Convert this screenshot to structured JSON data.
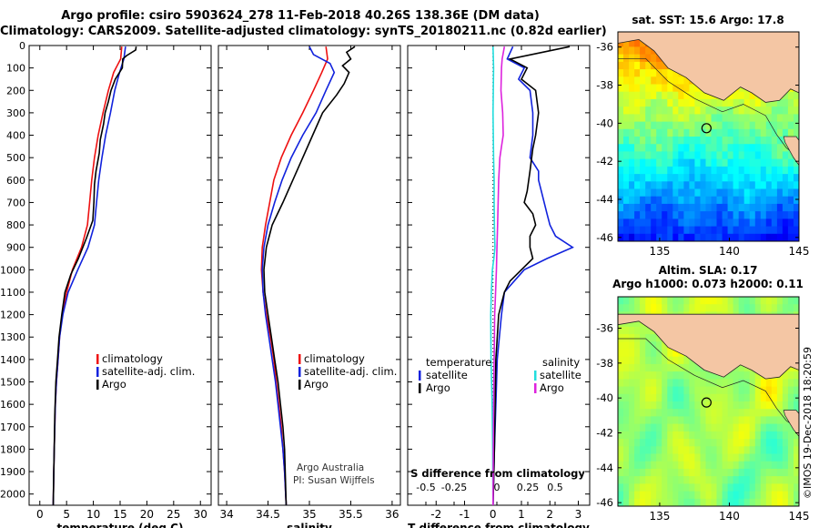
{
  "titles": {
    "line1": "Argo profile: csiro 5903624_278 11-Feb-2018 40.26S 138.36E (DM data)",
    "line2": "Climatology: CARS2009. Satellite-adjusted climatology: synTS_20180211.nc (0.82d earlier)"
  },
  "credit": "©IMOS 19-Dec-2018 18:20:59",
  "colors": {
    "climatology": "#ee1111",
    "satellite": "#1122dd",
    "argo": "#000000",
    "salinity_sat": "#22dddd",
    "salinity_argo": "#dd22dd"
  },
  "chart_data": [
    {
      "type": "line",
      "xlabel": "temperature (deg C)",
      "ylabel": "",
      "xlim": [
        -2,
        32
      ],
      "ylim": [
        2050,
        0
      ],
      "xticks": [
        "0",
        "5",
        "10",
        "15",
        "20",
        "25",
        "30"
      ],
      "yticks": [
        "0",
        "100",
        "200",
        "300",
        "400",
        "500",
        "600",
        "700",
        "800",
        "900",
        "1000",
        "1100",
        "1200",
        "1300",
        "1400",
        "1500",
        "1600",
        "1700",
        "1800",
        "1900",
        "2000"
      ],
      "legend": [
        "climatology",
        "satellite-adj. clim.",
        "Argo"
      ],
      "series": [
        {
          "name": "climatology",
          "color": "#ee1111",
          "x": [
            15.3,
            15.1,
            13.8,
            12.8,
            11.8,
            10.9,
            10.2,
            9.7,
            9.3,
            8.9,
            7.8,
            6.1,
            5.0,
            4.2,
            3.7,
            3.4,
            3.1,
            2.9,
            2.8,
            2.7,
            2.6,
            2.5
          ],
          "y": [
            5,
            60,
            120,
            200,
            300,
            400,
            500,
            600,
            700,
            800,
            900,
            1000,
            1100,
            1200,
            1300,
            1400,
            1500,
            1600,
            1700,
            1800,
            1900,
            2050
          ]
        },
        {
          "name": "satellite-adj. clim.",
          "color": "#1122dd",
          "x": [
            16.0,
            15.7,
            14.9,
            14.0,
            13.2,
            12.3,
            11.6,
            11.0,
            10.6,
            10.2,
            9.0,
            7.1,
            5.3,
            4.3,
            3.7,
            3.4,
            3.1,
            2.9,
            2.8,
            2.7,
            2.6,
            2.5
          ],
          "y": [
            5,
            60,
            120,
            200,
            300,
            400,
            500,
            600,
            700,
            800,
            900,
            1000,
            1100,
            1200,
            1300,
            1400,
            1500,
            1600,
            1700,
            1800,
            1900,
            2050
          ]
        },
        {
          "name": "Argo",
          "color": "#000000",
          "x": [
            18.0,
            17.9,
            16.2,
            15.5,
            15.4,
            14.1,
            13.3,
            12.8,
            12.2,
            11.9,
            11.3,
            11.1,
            10.5,
            10.2,
            10.1,
            9.9,
            8.7,
            7.2,
            5.8,
            4.7,
            4.1,
            3.6,
            3.3,
            3.0,
            2.8,
            2.7,
            2.6,
            2.5
          ],
          "y": [
            5,
            20,
            45,
            60,
            100,
            150,
            200,
            250,
            300,
            350,
            420,
            480,
            560,
            620,
            700,
            780,
            860,
            950,
            1020,
            1100,
            1200,
            1300,
            1400,
            1500,
            1650,
            1800,
            1900,
            2050
          ]
        }
      ]
    },
    {
      "type": "line",
      "xlabel": "salinity",
      "ylabel": "",
      "xlim": [
        33.9,
        36.1
      ],
      "ylim": [
        2050,
        0
      ],
      "xticks": [
        "34",
        "34.5",
        "35",
        "35.5",
        "36"
      ],
      "legend": [
        "climatology",
        "satellite-adj. clim.",
        "Argo"
      ],
      "annotations": [
        "Argo Australia",
        "PI: Susan Wijffels"
      ],
      "series": [
        {
          "name": "climatology",
          "color": "#ee1111",
          "x": [
            35.2,
            35.22,
            35.15,
            35.05,
            34.92,
            34.78,
            34.66,
            34.57,
            34.52,
            34.47,
            34.43,
            34.42,
            34.44,
            34.48,
            34.53,
            34.57,
            34.6,
            34.63,
            34.66,
            34.68,
            34.7,
            34.72
          ],
          "y": [
            5,
            60,
            120,
            200,
            300,
            400,
            500,
            600,
            700,
            800,
            900,
            1000,
            1100,
            1200,
            1300,
            1400,
            1500,
            1600,
            1700,
            1800,
            1900,
            2050
          ]
        },
        {
          "name": "satellite-adj. clim.",
          "color": "#1122dd",
          "x": [
            35.0,
            35.05,
            35.25,
            35.3,
            35.2,
            35.08,
            34.92,
            34.78,
            34.67,
            34.58,
            34.5,
            34.45,
            34.43,
            34.44,
            34.47,
            34.51,
            34.55,
            34.59,
            34.62,
            34.65,
            34.68,
            34.7,
            34.72
          ],
          "y": [
            5,
            40,
            80,
            120,
            200,
            300,
            400,
            500,
            600,
            700,
            800,
            900,
            1000,
            1100,
            1200,
            1300,
            1400,
            1500,
            1600,
            1700,
            1800,
            1900,
            2050
          ]
        },
        {
          "name": "Argo",
          "color": "#000000",
          "x": [
            35.55,
            35.45,
            35.5,
            35.4,
            35.48,
            35.42,
            35.33,
            35.16,
            35.04,
            34.92,
            34.8,
            34.68,
            34.55,
            34.48,
            34.45,
            34.46,
            34.5,
            34.54,
            34.58,
            34.62,
            34.65,
            34.68,
            34.7,
            34.72
          ],
          "y": [
            5,
            30,
            60,
            90,
            120,
            170,
            220,
            300,
            400,
            500,
            600,
            700,
            800,
            900,
            1000,
            1100,
            1200,
            1300,
            1400,
            1500,
            1600,
            1700,
            1800,
            2050
          ]
        }
      ]
    },
    {
      "type": "line",
      "xlabel": "T difference from climatology",
      "ylabel": "",
      "xlim": [
        -3,
        3.4
      ],
      "ylim": [
        2050,
        0
      ],
      "xticks": [
        "-2",
        "-1",
        "0",
        "1",
        "2",
        "3"
      ],
      "top_axis_label": "S difference from climatology",
      "top_xticks": [
        "-0.5",
        "-0.25",
        "0",
        "0.25",
        "0.5"
      ],
      "legend_left_title": "temperature",
      "legend_right_title": "salinity",
      "legend_left": [
        "satellite",
        "Argo"
      ],
      "legend_right": [
        "satellite",
        "Argo"
      ],
      "series": [
        {
          "name": "temperature satellite",
          "color": "#1122dd",
          "x": [
            0.7,
            0.5,
            1.1,
            0.9,
            1.3,
            1.4,
            1.4,
            1.3,
            1.6,
            1.6,
            1.7,
            1.8,
            1.9,
            2.0,
            2.2,
            2.8,
            1.9,
            1.1,
            0.4,
            0.3,
            0.15,
            0.1,
            0.05,
            0.0
          ],
          "y": [
            5,
            60,
            100,
            150,
            200,
            300,
            400,
            500,
            560,
            600,
            650,
            700,
            750,
            800,
            850,
            900,
            950,
            1000,
            1100,
            1200,
            1400,
            1600,
            1800,
            2050
          ]
        },
        {
          "name": "temperature Argo",
          "color": "#000000",
          "x": [
            2.7,
            0.6,
            1.2,
            1.0,
            1.5,
            1.6,
            1.5,
            1.4,
            1.3,
            1.2,
            1.1,
            1.4,
            1.5,
            1.3,
            1.3,
            1.4,
            1.0,
            0.6,
            0.4,
            0.2,
            0.1,
            0.05,
            0.0
          ],
          "y": [
            5,
            60,
            100,
            150,
            200,
            300,
            400,
            460,
            560,
            650,
            700,
            750,
            800,
            850,
            900,
            950,
            1000,
            1050,
            1100,
            1200,
            1400,
            1800,
            2050
          ]
        },
        {
          "name": "salinity satellite",
          "color": "#22dddd",
          "x": [
            0.0,
            0.02,
            0.01,
            0.0,
            0.01,
            0.02,
            0.04,
            0.04,
            0.05,
            0.06,
            0.07,
            0.03,
            -0.02,
            -0.06,
            -0.08,
            -0.07,
            -0.05,
            -0.03,
            -0.02,
            -0.01,
            0.0
          ],
          "y": [
            5,
            100,
            200,
            300,
            400,
            500,
            600,
            700,
            800,
            860,
            900,
            950,
            1000,
            1100,
            1200,
            1400,
            1500,
            1600,
            1700,
            1800,
            2050
          ]
        },
        {
          "name": "salinity Argo",
          "color": "#dd22dd",
          "x": [
            0.4,
            0.32,
            0.3,
            0.28,
            0.34,
            0.36,
            0.3,
            0.24,
            0.2,
            0.18,
            0.16,
            0.14,
            0.12,
            0.09,
            0.06,
            0.04,
            0.02,
            0.01,
            0.0
          ],
          "y": [
            5,
            60,
            100,
            200,
            300,
            400,
            450,
            500,
            600,
            700,
            800,
            900,
            1000,
            1100,
            1200,
            1400,
            1600,
            1800,
            2050
          ]
        }
      ]
    },
    {
      "type": "heatmap",
      "title": "sat. SST: 15.6 Argo: 17.8",
      "xlim": [
        132,
        145
      ],
      "ylim": [
        -46.2,
        -35.2
      ],
      "xticks": [
        "135",
        "140",
        "145"
      ],
      "yticks": [
        "-36",
        "-38",
        "-40",
        "-42",
        "-44",
        "-46"
      ],
      "marker": {
        "lon": 138.36,
        "lat": -40.26
      }
    },
    {
      "type": "heatmap",
      "title": "Altim. SLA: 0.17",
      "subtitle": "Argo h1000: 0.073 h2000: 0.11",
      "xlim": [
        132,
        145
      ],
      "ylim": [
        -46.2,
        -34.2
      ],
      "xticks": [
        "135",
        "140",
        "145"
      ],
      "yticks": [
        "-36",
        "-38",
        "-40",
        "-42",
        "-44",
        "-46"
      ],
      "marker": {
        "lon": 138.36,
        "lat": -40.26
      }
    }
  ]
}
